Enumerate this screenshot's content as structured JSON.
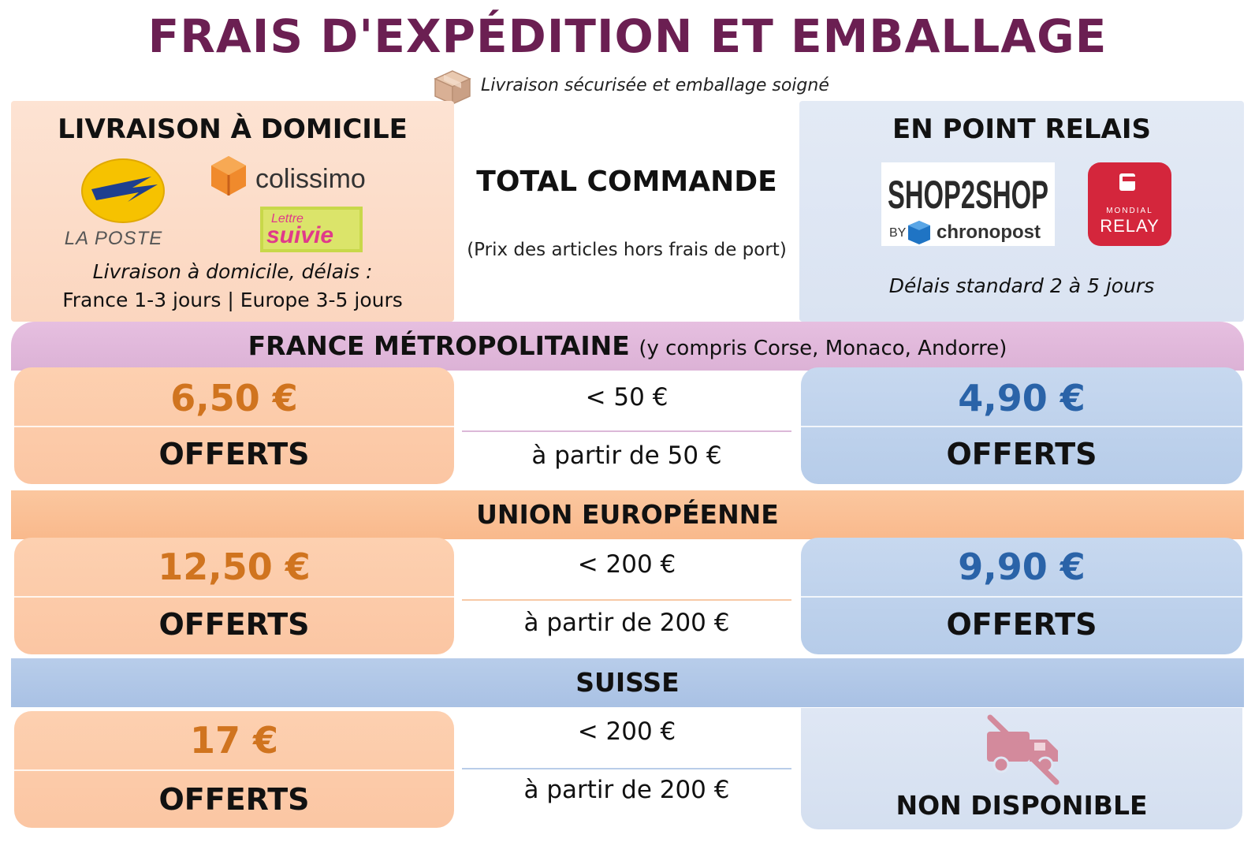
{
  "header": {
    "title": "FRAIS D'EXPÉDITION ET EMBALLAGE",
    "subtitle": "Livraison sécurisée et emballage soigné",
    "subtitle_icon": "package-box-icon"
  },
  "columns": {
    "home": {
      "heading": "LIVRAISON À DOMICILE",
      "logos": [
        "LA POSTE",
        "colissimo",
        "Lettre",
        "suivie"
      ],
      "note_line1": "Livraison à domicile, délais :",
      "note_line2": "France 1-3 jours | Europe 3-5 jours"
    },
    "total": {
      "heading": "TOTAL COMMANDE",
      "subheading": "(Prix des articles hors frais de port)"
    },
    "relay": {
      "heading": "EN POINT RELAIS",
      "logos": [
        "SHOP2SHOP",
        "BY",
        "chronopost",
        "MONDIAL",
        "RELAY"
      ],
      "note": "Délais standard 2 à 5 jours"
    }
  },
  "regions": {
    "france": {
      "name": "FRANCE MÉTROPOLITAINE",
      "detail": "(y compris Corse, Monaco, Andorre)",
      "home_price": "6,50 €",
      "home_free": "OFFERTS",
      "threshold_below": "< 50 €",
      "threshold_above": "à partir de 50 €",
      "relay_price": "4,90 €",
      "relay_free": "OFFERTS"
    },
    "eu": {
      "name": "UNION EUROPÉENNE",
      "home_price": "12,50 €",
      "home_free": "OFFERTS",
      "threshold_below": "< 200 €",
      "threshold_above": "à partir de 200 €",
      "relay_price": "9,90 €",
      "relay_free": "OFFERTS"
    },
    "ch": {
      "name": "SUISSE",
      "home_price": "17 €",
      "home_free": "OFFERTS",
      "threshold_below": "< 200 €",
      "threshold_above": "à partir de 200 €",
      "relay_status": "NON DISPONIBLE",
      "relay_icon": "truck-crossed-icon"
    }
  },
  "colors": {
    "title": "#6b1f52",
    "price_home": "#d0741f",
    "price_relay": "#2a63a8",
    "band_france": "#dcb2d6",
    "band_eu": "#f9b98c",
    "band_ch": "#a9c1e4"
  }
}
